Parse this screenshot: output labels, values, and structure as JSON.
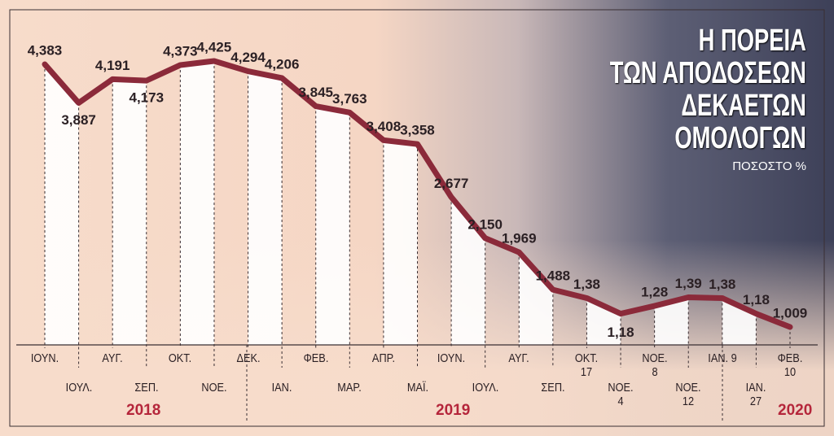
{
  "chart_data": {
    "type": "line",
    "title_lines": [
      "Η ΠΟΡΕΙΑ",
      "ΤΩΝ ΑΠΟΔΟΣΕΩΝ",
      "ΔΕΚΑΕΤΩΝ",
      "ΟΜΟΛΟΓΩΝ"
    ],
    "subtitle": "ΠΟΣΟΣΤΟ %",
    "categories": [
      "ΙΟΥΝ.",
      "ΙΟΥΛ.",
      "ΑΥΓ.",
      "ΣΕΠ.",
      "ΟΚΤ.",
      "ΝΟΕ.",
      "ΔΕΚ.",
      "ΙΑΝ.",
      "ΦΕΒ.",
      "ΜΑΡ.",
      "ΑΠΡ.",
      "ΜΑΪ.",
      "ΙΟΥΝ.",
      "ΙΟΥΛ.",
      "ΑΥΓ.",
      "ΣΕΠ.",
      "ΟΚΤ. 17",
      "ΝΟΕ. 4",
      "ΝΟΕ. 8",
      "ΝΟΕ. 12",
      "ΙΑΝ. 9",
      "ΙΑΝ. 27",
      "ΦΕΒ. 10"
    ],
    "values": [
      4.383,
      3.887,
      4.191,
      4.173,
      4.373,
      4.425,
      4.294,
      4.206,
      3.845,
      3.763,
      3.408,
      3.358,
      2.677,
      2.15,
      1.969,
      1.488,
      1.38,
      1.18,
      1.28,
      1.39,
      1.38,
      1.18,
      1.009
    ],
    "value_labels": [
      "4,383",
      "3,887",
      "4,191",
      "4,173",
      "4,373",
      "4,425",
      "4,294",
      "4,206",
      "3,845",
      "3,763",
      "3,408",
      "3,358",
      "2,677",
      "2,150",
      "1,969",
      "1,488",
      "1,38",
      "1,18",
      "1,28",
      "1,39",
      "1,38",
      "1,18",
      "1,009"
    ],
    "color": "#8b2a3a",
    "years": [
      "2018",
      "2019",
      "2020"
    ]
  }
}
